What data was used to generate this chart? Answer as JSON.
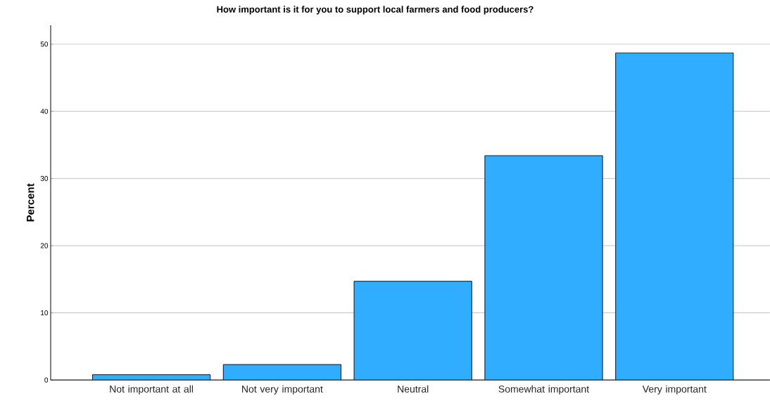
{
  "chart_data": {
    "type": "bar",
    "title": "How important is it for you to support local farmers and food producers?",
    "ylabel": "Percent",
    "categories": [
      "Not important at all",
      "Not very important",
      "Neutral",
      "Somewhat important",
      "Very important"
    ],
    "values": [
      0.8,
      2.3,
      14.7,
      33.4,
      48.7
    ],
    "color": "#31adff",
    "ylim": [
      0,
      52.8
    ],
    "yticks": [
      0,
      10,
      20,
      30,
      40,
      50
    ],
    "grid": "y"
  }
}
